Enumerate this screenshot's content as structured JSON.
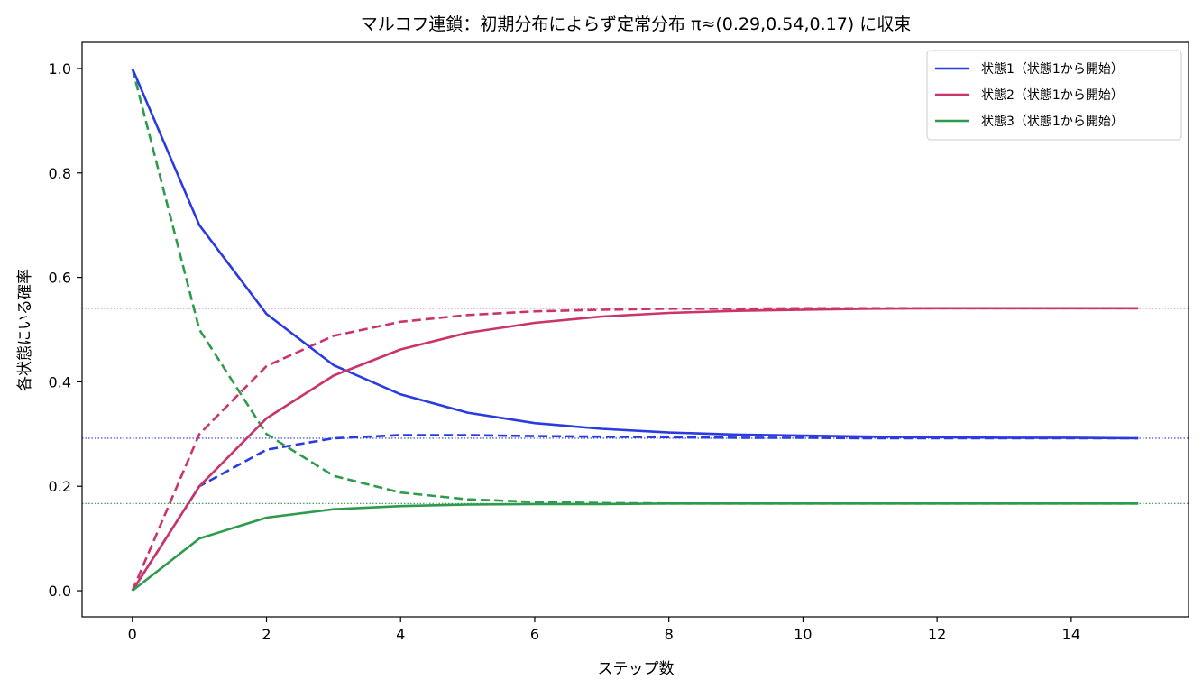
{
  "chart_data": {
    "type": "line",
    "title": "マルコフ連鎖：初期分布によらず定常分布 π≈(0.29,0.54,0.17) に収束",
    "xlabel": "ステップ数",
    "ylabel": "各状態にいる確率",
    "xlim": [
      -0.75,
      15.75
    ],
    "ylim": [
      -0.05,
      1.05
    ],
    "xticks": [
      0,
      2,
      4,
      6,
      8,
      10,
      12,
      14
    ],
    "yticks": [
      0.0,
      0.2,
      0.4,
      0.6,
      0.8,
      1.0
    ],
    "xtick_labels": [
      "0",
      "2",
      "4",
      "6",
      "8",
      "10",
      "12",
      "14"
    ],
    "ytick_labels": [
      "0.0",
      "0.2",
      "0.4",
      "0.6",
      "0.8",
      "1.0"
    ],
    "grid": false,
    "legend_position": "top-right",
    "x": [
      0,
      1,
      2,
      3,
      4,
      5,
      6,
      7,
      8,
      9,
      10,
      11,
      12,
      13,
      14,
      15
    ],
    "stationary": [
      {
        "value": 0.292,
        "color": "#2a3bdf"
      },
      {
        "value": 0.541,
        "color": "#c9346a"
      },
      {
        "value": 0.167,
        "color": "#2e9a4c"
      }
    ],
    "series": [
      {
        "name": "状態1（状態1から開始）",
        "style": "solid",
        "color": "#2a3bdf",
        "values": [
          1.0,
          0.7,
          0.53,
          0.432,
          0.376,
          0.341,
          0.321,
          0.31,
          0.303,
          0.299,
          0.297,
          0.295,
          0.294,
          0.293,
          0.293,
          0.292
        ]
      },
      {
        "name": "状態2（状態1から開始）",
        "style": "solid",
        "color": "#c9346a",
        "values": [
          0.0,
          0.2,
          0.33,
          0.412,
          0.462,
          0.494,
          0.513,
          0.525,
          0.532,
          0.536,
          0.538,
          0.54,
          0.541,
          0.541,
          0.541,
          0.541
        ]
      },
      {
        "name": "状態3（状態1から開始）",
        "style": "solid",
        "color": "#2e9a4c",
        "values": [
          0.0,
          0.1,
          0.14,
          0.156,
          0.162,
          0.165,
          0.166,
          0.166,
          0.167,
          0.167,
          0.167,
          0.167,
          0.167,
          0.167,
          0.167,
          0.167
        ]
      },
      {
        "style": "dashed",
        "color": "#2a3bdf",
        "values": [
          0.0,
          0.2,
          0.27,
          0.292,
          0.298,
          0.298,
          0.296,
          0.295,
          0.294,
          0.293,
          0.293,
          0.292,
          0.292,
          0.292,
          0.292,
          0.292
        ]
      },
      {
        "style": "dashed",
        "color": "#c9346a",
        "values": [
          0.0,
          0.3,
          0.43,
          0.488,
          0.515,
          0.528,
          0.535,
          0.538,
          0.54,
          0.54,
          0.541,
          0.541,
          0.541,
          0.541,
          0.541,
          0.541
        ]
      },
      {
        "style": "dashed",
        "color": "#2e9a4c",
        "values": [
          1.0,
          0.5,
          0.3,
          0.22,
          0.188,
          0.175,
          0.17,
          0.168,
          0.167,
          0.167,
          0.167,
          0.167,
          0.167,
          0.167,
          0.167,
          0.167
        ]
      }
    ]
  }
}
